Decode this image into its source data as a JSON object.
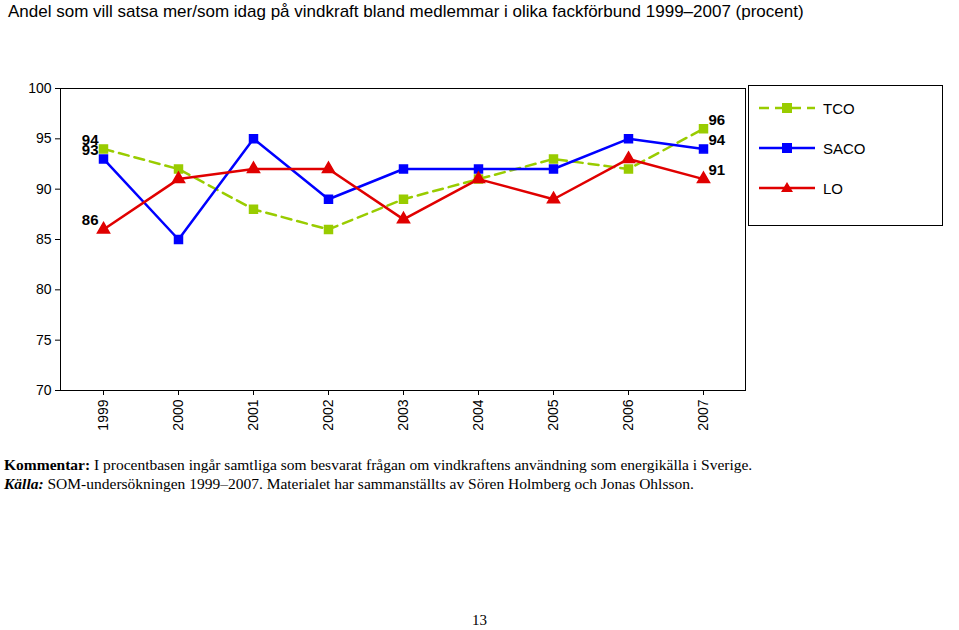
{
  "chart_data": {
    "type": "line",
    "title": "Andel som vill satsa mer/som idag på vindkraft bland medlemmar i olika fackförbund 1999–2007 (procent)",
    "categories": [
      "1999",
      "2000",
      "2001",
      "2002",
      "2003",
      "2004",
      "2005",
      "2006",
      "2007"
    ],
    "series": [
      {
        "name": "TCO",
        "color": "#99cc00",
        "marker": "square",
        "line_style": "dashed",
        "values": [
          94,
          92,
          88,
          86,
          89,
          91,
          93,
          92,
          96
        ],
        "value_labels": [
          "94",
          null,
          null,
          null,
          null,
          null,
          null,
          null,
          "96"
        ]
      },
      {
        "name": "SACO",
        "color": "#0000ff",
        "marker": "square",
        "line_style": "solid",
        "values": [
          93,
          85,
          95,
          89,
          92,
          92,
          92,
          95,
          94
        ],
        "value_labels": [
          "93",
          null,
          null,
          null,
          null,
          null,
          null,
          null,
          "94"
        ]
      },
      {
        "name": "LO",
        "color": "#e00000",
        "marker": "triangle",
        "line_style": "solid",
        "values": [
          86,
          91,
          92,
          92,
          87,
          91,
          89,
          93,
          91
        ],
        "value_labels": [
          "86",
          null,
          null,
          null,
          null,
          null,
          null,
          null,
          "91"
        ]
      }
    ],
    "ylim": [
      70,
      100
    ],
    "yticks": [
      70,
      75,
      80,
      85,
      90,
      95,
      100
    ],
    "grid": false,
    "legend": "top-right",
    "data_labels": true
  },
  "notes": {
    "comment": {
      "label": "Kommentar:",
      "text": "I procentbasen ingår samtliga som besvarat frågan om vindkraftens användning som energikälla i Sverige."
    },
    "source": {
      "label": "Källa:",
      "text": "SOM-undersökningen 1999–2007. Materialet har sammanställts av Sören Holmberg och Jonas Ohlsson."
    }
  },
  "page_number": "13"
}
